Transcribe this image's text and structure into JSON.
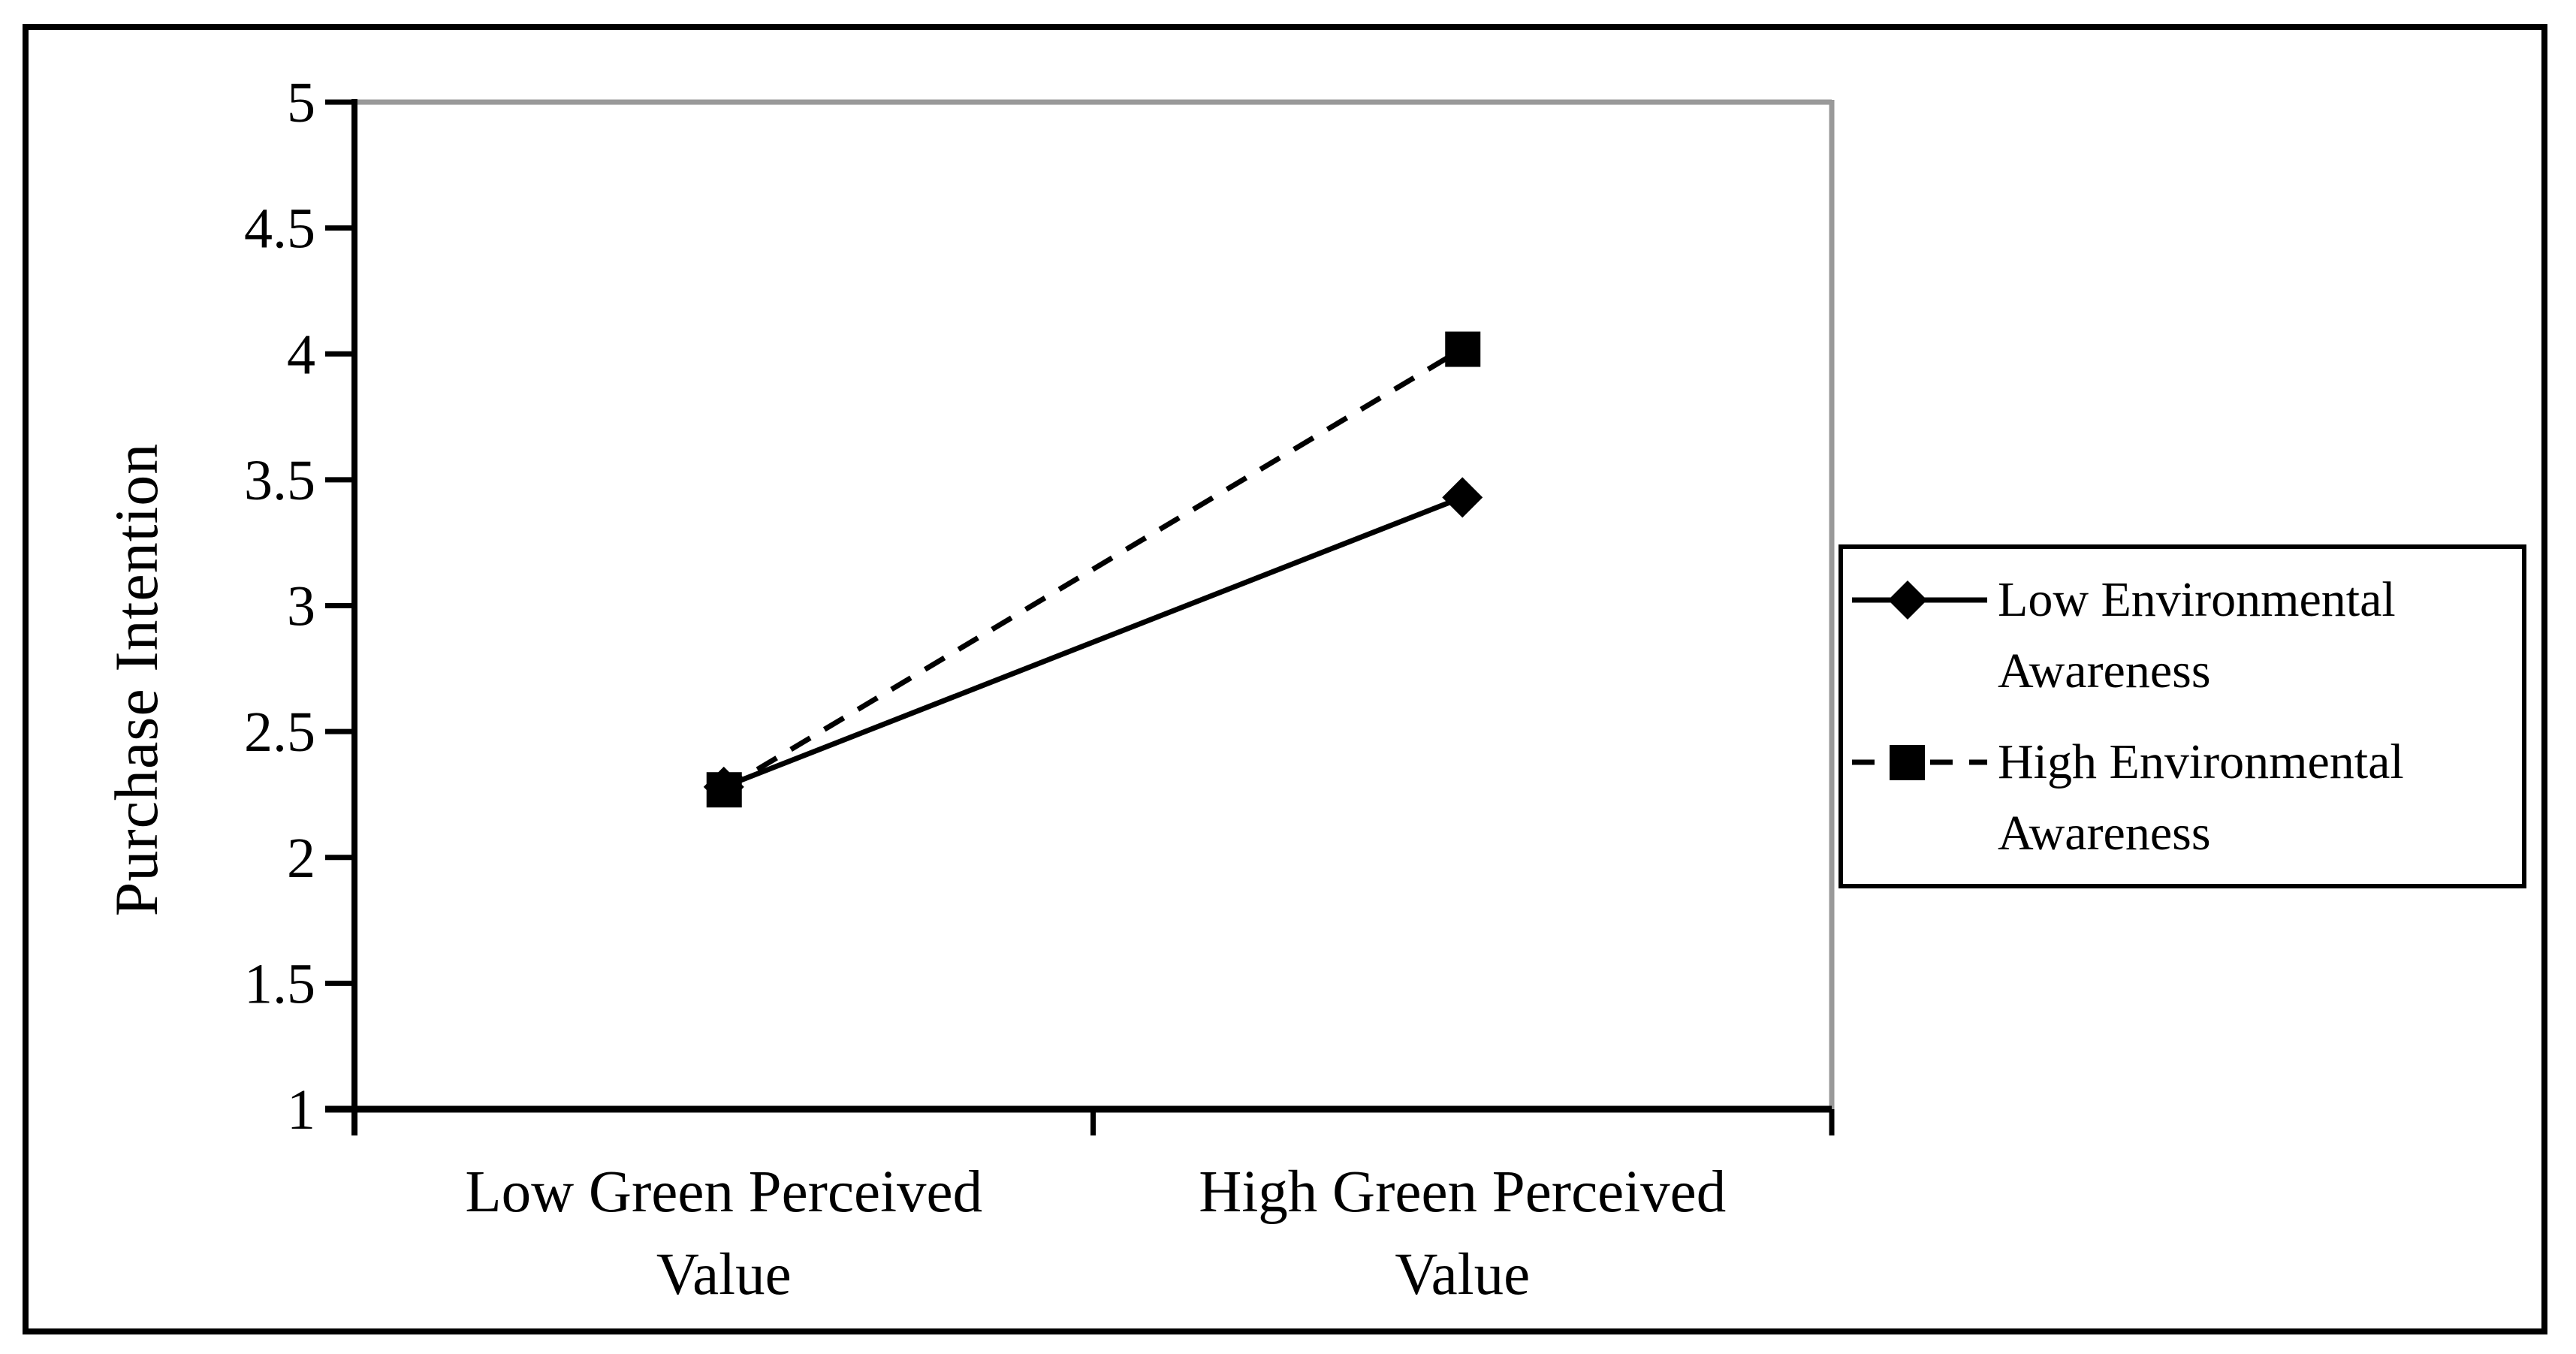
{
  "chart_data": {
    "type": "line",
    "title": "",
    "categories": [
      "Low Green Perceived Value",
      "High Green Perceived Value"
    ],
    "series": [
      {
        "name": "Low Environmental Awareness",
        "values": [
          2.28,
          3.43
        ],
        "marker": "diamond",
        "line_style": "solid"
      },
      {
        "name": "High Environmental Awareness",
        "values": [
          2.27,
          4.02
        ],
        "marker": "square",
        "line_style": "dashed"
      }
    ],
    "xlabel": "",
    "ylabel": "Purchase Intention",
    "ylim": [
      1,
      5
    ],
    "yticks": [
      5,
      4.5,
      4,
      3.5,
      3,
      2.5,
      2,
      1.5,
      1
    ],
    "grid": false,
    "legend_position": "right"
  },
  "colors": {
    "series_color": "#000000",
    "axis_color": "#000000",
    "plot_border_gray": "#999999",
    "background": "#ffffff"
  }
}
